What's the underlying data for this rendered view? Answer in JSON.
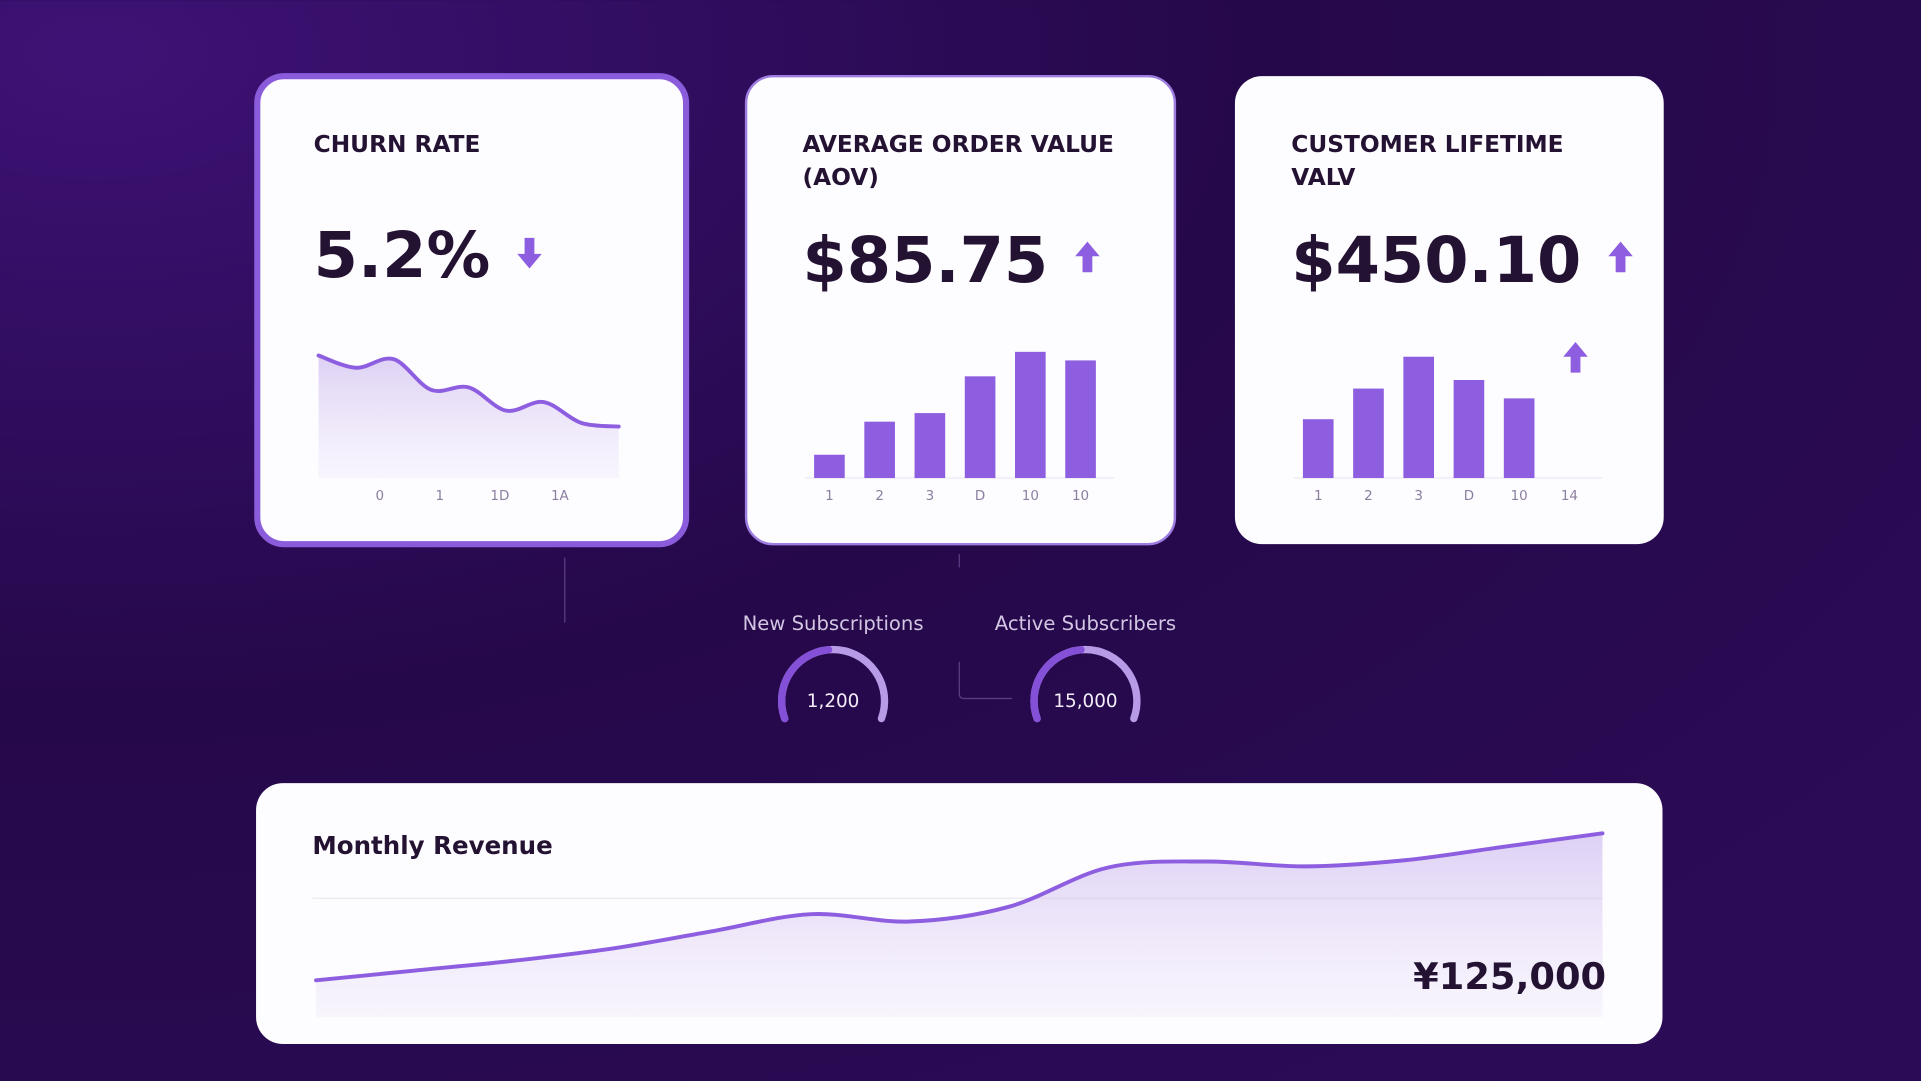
{
  "cards": [
    {
      "title": [
        "CHURN RATE"
      ],
      "value": "5.2%",
      "trend": "down",
      "chart": {
        "type": "line",
        "values": [
          100,
          90,
          97,
          72,
          74,
          55,
          62,
          45,
          42
        ],
        "ylim": [
          0,
          110
        ],
        "x_labels": [
          "0",
          "1",
          "1D",
          "1A"
        ]
      }
    },
    {
      "title": [
        "AVERAGE ORDER VALUE",
        "(AOV)"
      ],
      "value": "$85.75",
      "trend": "up",
      "chart": {
        "type": "bar",
        "values": [
          19,
          46,
          53,
          83,
          103,
          96
        ],
        "ylim": [
          0,
          110
        ],
        "x_labels": [
          "1",
          "2",
          "3",
          "D",
          "10",
          "10"
        ]
      }
    },
    {
      "title": [
        "CUSTOMER LIFETIME",
        "VALV"
      ],
      "value": "$450.10",
      "trend": "up",
      "chart": {
        "type": "bar",
        "values": [
          48,
          73,
          99,
          80,
          65,
          null
        ],
        "ylim": [
          0,
          110
        ],
        "x_labels": [
          "1",
          "2",
          "3",
          "D",
          "10",
          "14"
        ]
      }
    }
  ],
  "gauges": [
    {
      "label": "New Subscriptions",
      "value": "1,200"
    },
    {
      "label": "Active Subscribers",
      "value": "15,000"
    }
  ],
  "revenue": {
    "title": "Monthly Revenue",
    "value": "¥125,000",
    "chart": {
      "type": "line",
      "values": [
        30,
        38,
        46,
        56,
        70,
        84,
        78,
        90,
        122,
        127,
        123,
        128,
        139,
        150
      ],
      "ylim": [
        0,
        160
      ]
    }
  }
}
